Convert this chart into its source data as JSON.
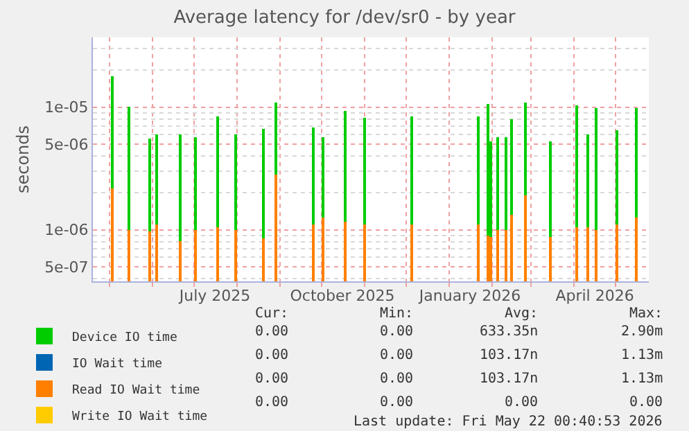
{
  "chart_data": {
    "type": "bar",
    "title": "Average latency for /dev/sr0 - by year",
    "ylabel": "seconds",
    "x": [
      "2025-05-03",
      "2025-05-15",
      "2025-05-30",
      "2025-06-04",
      "2025-06-21",
      "2025-07-02",
      "2025-07-18",
      "2025-07-31",
      "2025-08-20",
      "2025-08-29",
      "2025-09-25",
      "2025-10-02",
      "2025-10-18",
      "2025-11-01",
      "2025-12-05",
      "2026-01-22",
      "2026-01-29",
      "2026-01-31",
      "2026-02-05",
      "2026-02-11",
      "2026-02-15",
      "2026-02-25",
      "2026-03-15",
      "2026-04-03",
      "2026-04-11",
      "2026-04-17",
      "2026-05-02",
      "2026-05-16"
    ],
    "series": [
      {
        "name": "Device IO time",
        "color": "#00cc00",
        "values": [
          1.8e-05,
          1e-05,
          5.5e-06,
          6e-06,
          6e-06,
          5.7e-06,
          8.3e-06,
          6e-06,
          6.7e-06,
          1.1e-05,
          6.8e-06,
          5.7e-06,
          9.3e-06,
          8.1e-06,
          8.5e-06,
          8.5e-06,
          1.05e-05,
          5.2e-06,
          5.7e-06,
          5.7e-06,
          7.9e-06,
          1.1e-05,
          5.2e-06,
          1.03e-05,
          6e-06,
          9.7e-06,
          6.5e-06,
          9.7e-06
        ]
      },
      {
        "name": "IO Wait time",
        "color": "#0066b3",
        "values": [
          null,
          null,
          null,
          null,
          null,
          null,
          null,
          null,
          null,
          null,
          null,
          null,
          null,
          null,
          null,
          null,
          null,
          null,
          null,
          null,
          null,
          null,
          null,
          null,
          null,
          null,
          null,
          null
        ]
      },
      {
        "name": "Read IO Wait time",
        "color": "#ff8000",
        "values": [
          2.2e-06,
          1e-06,
          9.7e-07,
          1.1e-06,
          8e-07,
          1e-06,
          1.05e-06,
          1e-06,
          8.5e-07,
          2.8e-06,
          1.1e-06,
          1.25e-06,
          1.15e-06,
          1.1e-06,
          1.1e-06,
          1.1e-06,
          9e-07,
          8.7e-07,
          1e-06,
          1e-06,
          1.33e-06,
          1.9e-06,
          8.7e-07,
          1.05e-06,
          1.05e-06,
          1e-06,
          1.1e-06,
          1.25e-06
        ]
      },
      {
        "name": "Write IO Wait time",
        "color": "#ffcc00",
        "values": [
          null,
          null,
          null,
          null,
          null,
          null,
          null,
          null,
          null,
          null,
          null,
          null,
          null,
          null,
          null,
          null,
          null,
          null,
          null,
          null,
          null,
          null,
          null,
          null,
          null,
          null,
          null,
          null
        ]
      }
    ],
    "log": "y",
    "ylim": [
      3.8e-07,
      3.7e-05
    ],
    "yticks": [
      {
        "value": 5e-07,
        "label": "5e-07"
      },
      {
        "value": 1e-06,
        "label": "1e-06"
      },
      {
        "value": 5e-06,
        "label": "5e-06"
      },
      {
        "value": 1e-05,
        "label": "1e-05"
      }
    ],
    "xlim": [
      "2025-04-19",
      "2026-05-25"
    ],
    "xticks": [
      {
        "value": "2025-05-01",
        "label": null
      },
      {
        "value": "2025-06-01",
        "label": null
      },
      {
        "value": "2025-07-01",
        "label": null
      },
      {
        "value": "2025-07-16",
        "label": "July 2025"
      },
      {
        "value": "2025-08-01",
        "label": null
      },
      {
        "value": "2025-09-01",
        "label": null
      },
      {
        "value": "2025-10-01",
        "label": null
      },
      {
        "value": "2025-10-16",
        "label": "October 2025"
      },
      {
        "value": "2025-11-01",
        "label": null
      },
      {
        "value": "2025-12-01",
        "label": null
      },
      {
        "value": "2026-01-01",
        "label": null
      },
      {
        "value": "2026-01-16",
        "label": "January 2026"
      },
      {
        "value": "2026-02-01",
        "label": null
      },
      {
        "value": "2026-03-01",
        "label": null
      },
      {
        "value": "2026-04-01",
        "label": null
      },
      {
        "value": "2026-04-16",
        "label": "April 2026"
      },
      {
        "value": "2026-05-01",
        "label": null
      }
    ],
    "grid": true,
    "legend": "bottom left",
    "annotations": [
      "Cur:",
      "Min:",
      "Avg:",
      "Max:",
      "0.00",
      "0.00",
      "633.35n",
      "2.90m",
      "0.00",
      "0.00",
      "103.17n",
      "1.13m",
      "0.00",
      "0.00",
      "103.17n",
      "1.13m",
      "0.00",
      "0.00",
      "0.00",
      "0.00",
      "Last update: Fri May 22 00:40:53 2026"
    ]
  }
}
